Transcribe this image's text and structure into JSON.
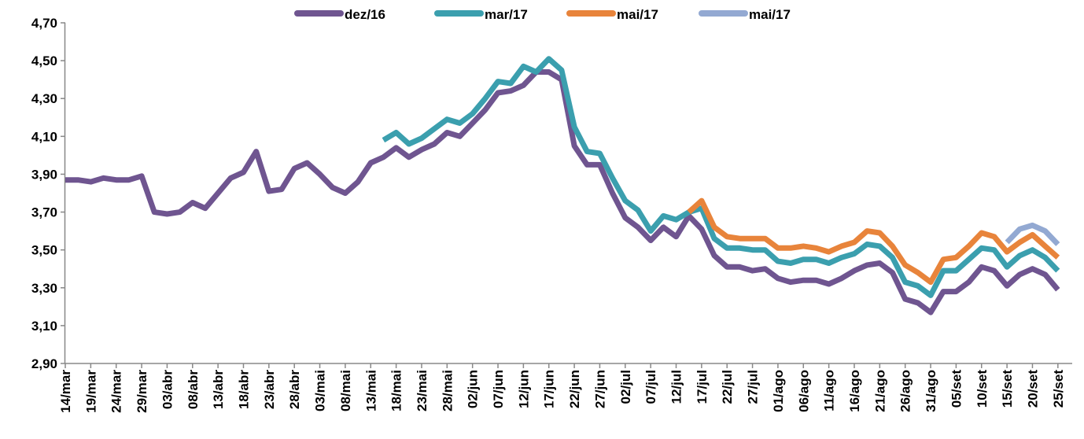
{
  "chart_data": {
    "type": "line",
    "categories": [
      "14/mar",
      null,
      "19/mar",
      null,
      "24/mar",
      null,
      "29/mar",
      null,
      "03/abr",
      null,
      "08/abr",
      null,
      "13/abr",
      null,
      "18/abr",
      null,
      "23/abr",
      null,
      "28/abr",
      null,
      "03/mai",
      null,
      "08/mai",
      null,
      "13/mai",
      null,
      "18/mai",
      null,
      "23/mai",
      null,
      "28/mai",
      null,
      "02/jun",
      null,
      "07/jun",
      null,
      "12/jun",
      null,
      "17/jun",
      null,
      "22/jun",
      null,
      "27/jun",
      null,
      "02/jul",
      null,
      "07/jul",
      null,
      "12/jul",
      null,
      "17/jul",
      null,
      "22/jul",
      null,
      "27/jul",
      null,
      "01/ago",
      null,
      "06/ago",
      null,
      "11/ago",
      null,
      "16/ago",
      null,
      "21/ago",
      null,
      "26/ago",
      null,
      "31/ago",
      null,
      "05/set",
      null,
      "10/set",
      null,
      "15/set",
      null,
      "20/set",
      null,
      "25/set",
      null
    ],
    "series": [
      {
        "name": "dez/16",
        "color": "#6f5590",
        "values": [
          3.87,
          3.87,
          3.86,
          3.88,
          3.87,
          3.87,
          3.89,
          3.7,
          3.69,
          3.7,
          3.75,
          3.72,
          3.8,
          3.88,
          3.91,
          4.02,
          3.81,
          3.82,
          3.93,
          3.96,
          3.9,
          3.83,
          3.8,
          3.86,
          3.96,
          3.99,
          4.04,
          3.99,
          4.03,
          4.06,
          4.12,
          4.1,
          4.17,
          4.24,
          4.33,
          4.34,
          4.37,
          4.44,
          4.44,
          4.4,
          4.05,
          3.95,
          3.95,
          3.8,
          3.67,
          3.62,
          3.55,
          3.62,
          3.57,
          3.68,
          3.61,
          3.47,
          3.41,
          3.41,
          3.39,
          3.4,
          3.35,
          3.33,
          3.34,
          3.34,
          3.32,
          3.35,
          3.39,
          3.42,
          3.43,
          3.38,
          3.24,
          3.22,
          3.17,
          3.28,
          3.28,
          3.33,
          3.41,
          3.39,
          3.31,
          3.37,
          3.4,
          3.37,
          3.29,
          null
        ]
      },
      {
        "name": "mar/17",
        "color": "#3b9fae",
        "values": [
          null,
          null,
          null,
          null,
          null,
          null,
          null,
          null,
          null,
          null,
          null,
          null,
          null,
          null,
          null,
          null,
          null,
          null,
          null,
          null,
          null,
          null,
          null,
          null,
          null,
          4.08,
          4.12,
          4.06,
          4.09,
          4.14,
          4.19,
          4.17,
          4.22,
          4.3,
          4.39,
          4.38,
          4.47,
          4.44,
          4.51,
          4.45,
          4.15,
          4.02,
          4.01,
          3.88,
          3.76,
          3.71,
          3.6,
          3.68,
          3.66,
          3.7,
          3.72,
          3.56,
          3.51,
          3.51,
          3.5,
          3.5,
          3.44,
          3.43,
          3.45,
          3.45,
          3.43,
          3.46,
          3.48,
          3.53,
          3.52,
          3.46,
          3.33,
          3.31,
          3.26,
          3.39,
          3.39,
          3.45,
          3.51,
          3.5,
          3.41,
          3.47,
          3.5,
          3.46,
          3.39,
          null
        ]
      },
      {
        "name": "mai/17",
        "color": "#e8843b",
        "values": [
          null,
          null,
          null,
          null,
          null,
          null,
          null,
          null,
          null,
          null,
          null,
          null,
          null,
          null,
          null,
          null,
          null,
          null,
          null,
          null,
          null,
          null,
          null,
          null,
          null,
          null,
          null,
          null,
          null,
          null,
          null,
          null,
          null,
          null,
          null,
          null,
          null,
          null,
          null,
          null,
          null,
          null,
          null,
          null,
          null,
          null,
          null,
          null,
          null,
          3.7,
          3.76,
          3.62,
          3.57,
          3.56,
          3.56,
          3.56,
          3.51,
          3.51,
          3.52,
          3.51,
          3.49,
          3.52,
          3.54,
          3.6,
          3.59,
          3.52,
          3.42,
          3.38,
          3.33,
          3.45,
          3.46,
          3.52,
          3.59,
          3.57,
          3.49,
          3.54,
          3.58,
          3.52,
          3.46,
          null
        ]
      },
      {
        "name": "mai/17",
        "color": "#93a9d2",
        "values": [
          null,
          null,
          null,
          null,
          null,
          null,
          null,
          null,
          null,
          null,
          null,
          null,
          null,
          null,
          null,
          null,
          null,
          null,
          null,
          null,
          null,
          null,
          null,
          null,
          null,
          null,
          null,
          null,
          null,
          null,
          null,
          null,
          null,
          null,
          null,
          null,
          null,
          null,
          null,
          null,
          null,
          null,
          null,
          null,
          null,
          null,
          null,
          null,
          null,
          null,
          null,
          null,
          null,
          null,
          null,
          null,
          null,
          null,
          null,
          null,
          null,
          null,
          null,
          null,
          null,
          null,
          null,
          null,
          null,
          null,
          null,
          null,
          null,
          null,
          3.54,
          3.61,
          3.63,
          3.6,
          3.53,
          null
        ]
      }
    ],
    "ylim": [
      2.9,
      4.7
    ],
    "yticks": [
      {
        "value": 2.9,
        "label": "2,90"
      },
      {
        "value": 3.1,
        "label": "3,10"
      },
      {
        "value": 3.3,
        "label": "3,30"
      },
      {
        "value": 3.5,
        "label": "3,50"
      },
      {
        "value": 3.7,
        "label": "3,70"
      },
      {
        "value": 3.9,
        "label": "3,90"
      },
      {
        "value": 4.1,
        "label": "4,10"
      },
      {
        "value": 4.3,
        "label": "4,30"
      },
      {
        "value": 4.5,
        "label": "4,50"
      },
      {
        "value": 4.7,
        "label": "4,70"
      }
    ],
    "grid": false,
    "legend": "top"
  }
}
